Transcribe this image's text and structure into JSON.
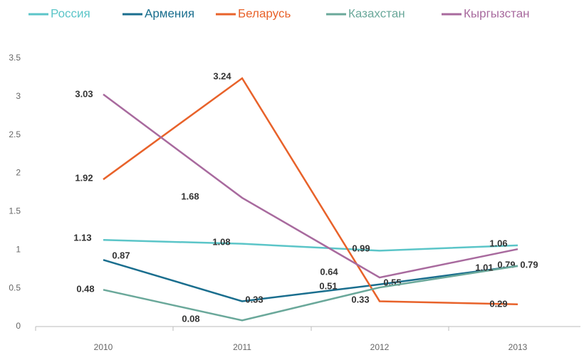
{
  "chart_data": {
    "type": "line",
    "categories": [
      "2010",
      "2011",
      "2012",
      "2013"
    ],
    "series": [
      {
        "name": "Россия",
        "color": "#5bc5c8",
        "values": [
          1.13,
          1.08,
          0.99,
          1.06
        ]
      },
      {
        "name": "Армения",
        "color": "#1a6e8e",
        "values": [
          0.87,
          0.33,
          0.55,
          0.79
        ]
      },
      {
        "name": "Беларусь",
        "color": "#e8622a",
        "values": [
          1.92,
          3.24,
          0.33,
          0.29
        ]
      },
      {
        "name": "Казахстан",
        "color": "#6aa89a",
        "values": [
          0.48,
          0.08,
          0.51,
          0.79
        ]
      },
      {
        "name": "Кыргызстан",
        "color": "#a86a9e",
        "values": [
          3.03,
          1.68,
          0.64,
          1.01
        ]
      }
    ],
    "ylim": [
      0,
      3.5
    ],
    "yticks": [
      0,
      0.5,
      1,
      1.5,
      2,
      2.5,
      3,
      3.5
    ],
    "legend": "top",
    "grid": false
  }
}
